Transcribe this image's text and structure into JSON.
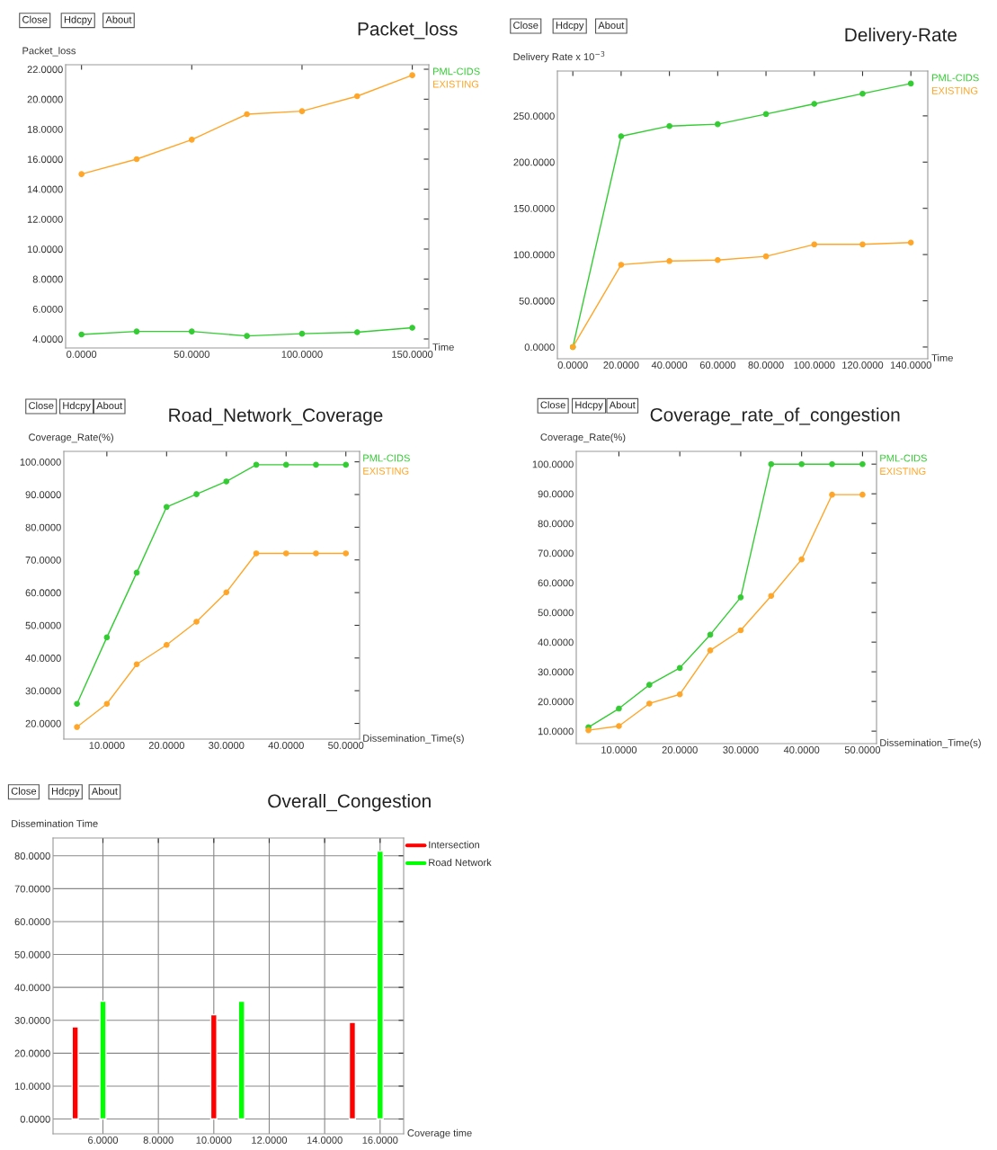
{
  "chart_data": [
    {
      "type": "line",
      "title": "Packet_loss",
      "ylabel": "Packet_loss",
      "xlabel": "Time",
      "annotations": [
        "Close",
        "Hdcpy",
        "About"
      ],
      "marker": "circle",
      "legend": "top right",
      "grid": false,
      "xlim": [
        -7.2,
        157.5
      ],
      "ylim": [
        3.4,
        22.3
      ],
      "xticks": [
        {
          "value": 0,
          "label": "0.0000"
        },
        {
          "value": 50,
          "label": "50.0000"
        },
        {
          "value": 100,
          "label": "100.0000"
        },
        {
          "value": 150,
          "label": "150.0000"
        }
      ],
      "yticks": [
        {
          "value": 4,
          "label": "4.0000"
        },
        {
          "value": 6,
          "label": "6.0000"
        },
        {
          "value": 8,
          "label": "8.0000"
        },
        {
          "value": 10,
          "label": "10.0000"
        },
        {
          "value": 12,
          "label": "12.0000"
        },
        {
          "value": 14,
          "label": "14.0000"
        },
        {
          "value": 16,
          "label": "16.0000"
        },
        {
          "value": 18,
          "label": "18.0000"
        },
        {
          "value": 20,
          "label": "20.0000"
        },
        {
          "value": 22,
          "label": "22.0000"
        }
      ],
      "x": [
        0,
        25,
        50,
        75,
        100,
        125,
        150
      ],
      "series": [
        {
          "name": "PML-CIDS",
          "color": "#33cc33",
          "values": [
            4.3,
            4.5,
            4.5,
            4.2,
            4.35,
            4.45,
            4.75
          ]
        },
        {
          "name": "EXISTING",
          "color": "#ffa628",
          "values": [
            15.0,
            16.0,
            17.3,
            19.0,
            19.2,
            20.2,
            21.6
          ]
        }
      ]
    },
    {
      "type": "line",
      "title": "Delivery-Rate",
      "ylabel": "Delivery Rate x 10$^{−3}$",
      "xlabel": "Time",
      "annotations": [
        "Close",
        "Hdcpy",
        "About"
      ],
      "marker": "circle",
      "legend": "top right",
      "grid": false,
      "xlim": [
        -6.4,
        147
      ],
      "ylim": [
        -12.7,
        298.5
      ],
      "xticks": [
        {
          "value": 0,
          "label": "0.0000"
        },
        {
          "value": 20,
          "label": "20.0000"
        },
        {
          "value": 40,
          "label": "40.0000"
        },
        {
          "value": 60,
          "label": "60.0000"
        },
        {
          "value": 80,
          "label": "80.0000"
        },
        {
          "value": 100,
          "label": "100.0000"
        },
        {
          "value": 120,
          "label": "120.0000"
        },
        {
          "value": 140,
          "label": "140.0000"
        }
      ],
      "yticks": [
        {
          "value": 0,
          "label": "0.0000"
        },
        {
          "value": 50,
          "label": "50.0000"
        },
        {
          "value": 100,
          "label": "100.0000"
        },
        {
          "value": 150,
          "label": "150.0000"
        },
        {
          "value": 200,
          "label": "200.0000"
        },
        {
          "value": 250,
          "label": "250.0000"
        }
      ],
      "x": [
        0,
        20,
        40,
        60,
        80,
        100,
        120,
        140
      ],
      "series": [
        {
          "name": "PML-CIDS",
          "color": "#33cc33",
          "values": [
            0,
            228,
            239,
            241,
            252,
            263,
            274,
            285
          ]
        },
        {
          "name": "EXISTING",
          "color": "#ffa628",
          "values": [
            0,
            89,
            93,
            94,
            98,
            111,
            111,
            113
          ]
        }
      ]
    },
    {
      "type": "line",
      "title": "Road_Network_Coverage",
      "ylabel": "Coverage_Rate(%)",
      "xlabel": "Dissemination_Time(s)",
      "annotations": [
        "Close",
        "Hdcpy",
        "About"
      ],
      "marker": "circle",
      "legend": "top right",
      "grid": false,
      "xlim": [
        2.8,
        52.3
      ],
      "ylim": [
        15.2,
        103.2
      ],
      "xticks": [
        {
          "value": 10,
          "label": "10.0000"
        },
        {
          "value": 20,
          "label": "20.0000"
        },
        {
          "value": 30,
          "label": "30.0000"
        },
        {
          "value": 40,
          "label": "40.0000"
        },
        {
          "value": 50,
          "label": "50.0000"
        }
      ],
      "yticks": [
        {
          "value": 20,
          "label": "20.0000"
        },
        {
          "value": 30,
          "label": "30.0000"
        },
        {
          "value": 40,
          "label": "40.0000"
        },
        {
          "value": 50,
          "label": "50.0000"
        },
        {
          "value": 60,
          "label": "60.0000"
        },
        {
          "value": 70,
          "label": "70.0000"
        },
        {
          "value": 80,
          "label": "80.0000"
        },
        {
          "value": 90,
          "label": "90.0000"
        },
        {
          "value": 100,
          "label": "100.0000"
        }
      ],
      "x": [
        5,
        10,
        15,
        20,
        25,
        30,
        35,
        40,
        45,
        50
      ],
      "series": [
        {
          "name": "PML-CIDS",
          "color": "#33cc33",
          "values": [
            26.0,
            46.3,
            66.1,
            86.2,
            90.1,
            94.0,
            99.1,
            99.1,
            99.1,
            99.1
          ]
        },
        {
          "name": "EXISTING",
          "color": "#ffa628",
          "values": [
            18.9,
            26.0,
            38.1,
            44.0,
            51.1,
            60.1,
            72.0,
            72.0,
            72.0,
            72.0
          ]
        }
      ]
    },
    {
      "type": "line",
      "title": "Coverage_rate_of_congestion",
      "ylabel": "Coverage_Rate(%)",
      "xlabel": "Dissemination_Time(s)",
      "annotations": [
        "Close",
        "Hdcpy",
        "About"
      ],
      "marker": "circle",
      "legend": "top right",
      "grid": false,
      "xlim": [
        3.0,
        52.3
      ],
      "ylim": [
        5.8,
        104.3
      ],
      "xticks": [
        {
          "value": 10,
          "label": "10.0000"
        },
        {
          "value": 20,
          "label": "20.0000"
        },
        {
          "value": 30,
          "label": "30.0000"
        },
        {
          "value": 40,
          "label": "40.0000"
        },
        {
          "value": 50,
          "label": "50.0000"
        }
      ],
      "yticks": [
        {
          "value": 10,
          "label": "10.0000"
        },
        {
          "value": 20,
          "label": "20.0000"
        },
        {
          "value": 30,
          "label": "30.0000"
        },
        {
          "value": 40,
          "label": "40.0000"
        },
        {
          "value": 50,
          "label": "50.0000"
        },
        {
          "value": 60,
          "label": "60.0000"
        },
        {
          "value": 70,
          "label": "70.0000"
        },
        {
          "value": 80,
          "label": "80.0000"
        },
        {
          "value": 90,
          "label": "90.0000"
        },
        {
          "value": 100,
          "label": "100.0000"
        }
      ],
      "x": [
        5,
        10,
        15,
        20,
        25,
        30,
        35,
        40,
        45,
        50
      ],
      "series": [
        {
          "name": "PML-CIDS",
          "color": "#33cc33",
          "values": [
            11.3,
            17.6,
            25.6,
            31.3,
            42.5,
            55.1,
            100,
            100,
            100,
            100
          ]
        },
        {
          "name": "EXISTING",
          "color": "#ffa628",
          "values": [
            10.3,
            11.7,
            19.3,
            22.4,
            37.2,
            44.0,
            55.6,
            67.9,
            89.7,
            89.7
          ]
        }
      ]
    },
    {
      "type": "bar",
      "title": "Overall_Congestion",
      "ylabel": "Dissemination Time",
      "xlabel": "Coverage time",
      "annotations": [
        "Close",
        "Hdcpy",
        "About"
      ],
      "legend": "top right",
      "grid": true,
      "xlim": [
        4.2,
        16.85
      ],
      "ylim": [
        -4.5,
        85.4
      ],
      "xticks": [
        {
          "value": 6,
          "label": "6.0000"
        },
        {
          "value": 8,
          "label": "8.0000"
        },
        {
          "value": 10,
          "label": "10.0000"
        },
        {
          "value": 12,
          "label": "12.0000"
        },
        {
          "value": 14,
          "label": "14.0000"
        },
        {
          "value": 16,
          "label": "16.0000"
        }
      ],
      "yticks": [
        {
          "value": 0,
          "label": "0.0000"
        },
        {
          "value": 10,
          "label": "10.0000"
        },
        {
          "value": 20,
          "label": "20.0000"
        },
        {
          "value": 30,
          "label": "30.0000"
        },
        {
          "value": 40,
          "label": "40.0000"
        },
        {
          "value": 50,
          "label": "50.0000"
        },
        {
          "value": 60,
          "label": "60.0000"
        },
        {
          "value": 70,
          "label": "70.0000"
        },
        {
          "value": 80,
          "label": "80.0000"
        }
      ],
      "series": [
        {
          "name": "Intersection",
          "color": "#ff0000",
          "x": [
            5,
            10,
            15
          ],
          "values": [
            28.0,
            31.7,
            29.4
          ]
        },
        {
          "name": "Road Network",
          "color": "#00ff00",
          "x": [
            6,
            11,
            16
          ],
          "values": [
            35.8,
            35.8,
            81.4
          ]
        }
      ]
    }
  ]
}
